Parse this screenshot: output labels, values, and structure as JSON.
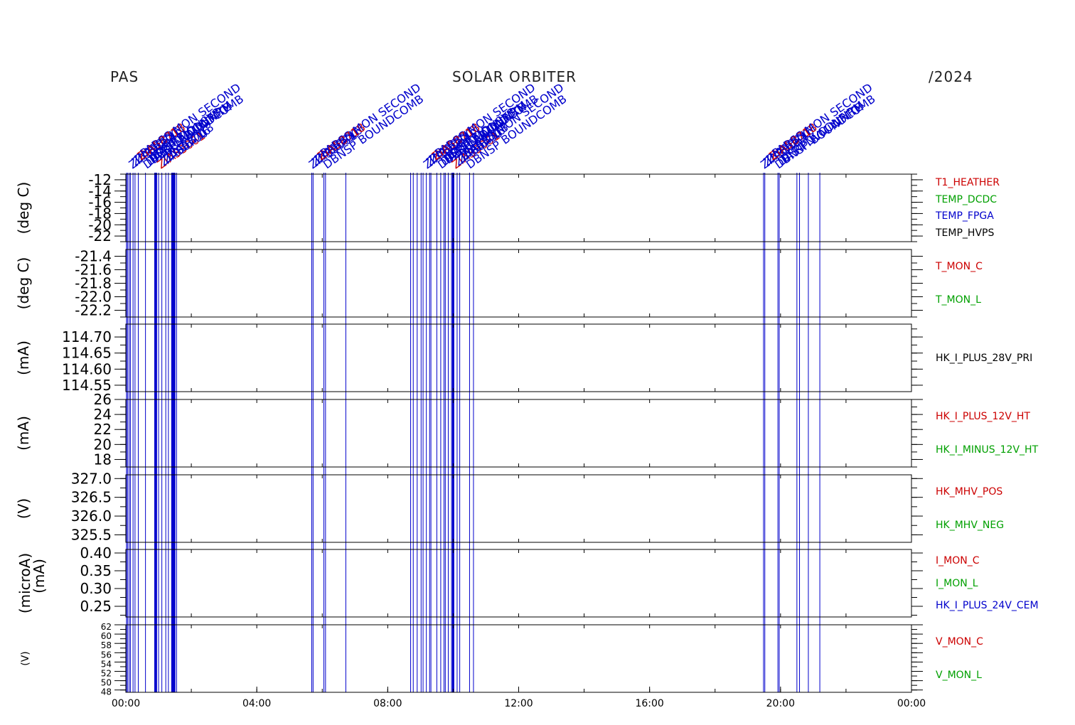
{
  "header": {
    "left": "PAS",
    "center": "SOLAR ORBITER",
    "right": "/2024"
  },
  "colors": {
    "axis": "#000000",
    "event_line": "#0000cc",
    "red": "#cc0000",
    "green": "#00a000",
    "blue": "#0000cc",
    "black": "#000000"
  },
  "chart_data": {
    "type": "line",
    "x_axis": {
      "range": [
        "00:00",
        "24:00"
      ],
      "tick_labels": [
        "00:00",
        "04:00",
        "08:00",
        "12:00",
        "16:00",
        "20:00",
        "00:00"
      ]
    },
    "events": {
      "description_values_hours": [
        0.02,
        0.05,
        0.1,
        0.14,
        0.22,
        0.28,
        0.38,
        0.6,
        0.88,
        0.92,
        1.0,
        1.1,
        1.22,
        1.3,
        1.42,
        1.48,
        1.55,
        5.68,
        5.72,
        6.05,
        6.1,
        6.72,
        8.7,
        8.78,
        8.9,
        9.02,
        9.08,
        9.18,
        9.28,
        9.32,
        9.5,
        9.62,
        9.72,
        9.76,
        9.85,
        9.95,
        10.0,
        10.12,
        10.2,
        10.5,
        10.62,
        19.48,
        19.52,
        19.92,
        19.96,
        20.5,
        20.58,
        20.85,
        21.2
      ],
      "bold_hours": [
        0.92,
        1.42,
        1.48,
        5.7,
        6.08,
        8.92,
        9.3,
        9.75,
        10.0,
        19.5,
        19.94
      ],
      "labels": [
        "ZIA53061",
        "ZIA58700",
        "ZIA58716",
        "ZIA58718",
        "PARSS MON SECOND",
        "DBNSP BOUNDCOMB",
        "DAST NVM WRITE",
        "DFRPLY CONFIRM",
        "EAST MONSYS",
        "DF/RSV"
      ]
    },
    "panels": [
      {
        "unit": "(deg C)",
        "ylim": [
          -23,
          -11
        ],
        "ticks": [
          "-12",
          "-14",
          "-16",
          "-18",
          "-20",
          "-22"
        ],
        "tick_values": [
          -12,
          -14,
          -16,
          -18,
          -20,
          -22
        ],
        "series": [
          {
            "name": "T1_HEATHER",
            "color": "#cc0000"
          },
          {
            "name": "TEMP_DCDC",
            "color": "#00a000"
          },
          {
            "name": "TEMP_FPGA",
            "color": "#0000cc"
          },
          {
            "name": "TEMP_HVPS",
            "color": "#000000"
          }
        ]
      },
      {
        "unit": "(deg C)",
        "ylim": [
          -22.3,
          -21.3
        ],
        "ticks": [
          "-21.4",
          "-21.6",
          "-21.8",
          "-22.0",
          "-22.2"
        ],
        "tick_values": [
          -21.4,
          -21.6,
          -21.8,
          -22.0,
          -22.2
        ],
        "series": [
          {
            "name": "T_MON_C",
            "color": "#cc0000"
          },
          {
            "name": "T_MON_L",
            "color": "#00a000"
          }
        ]
      },
      {
        "unit": "(mA)",
        "ylim": [
          114.53,
          114.74
        ],
        "ticks": [
          "114.70",
          "114.65",
          "114.60",
          "114.55"
        ],
        "tick_values": [
          114.7,
          114.65,
          114.6,
          114.55
        ],
        "series": [
          {
            "name": "HK_I_PLUS_28V_PRI",
            "color": "#000000"
          }
        ]
      },
      {
        "unit": "(mA)",
        "ylim": [
          17,
          26
        ],
        "ticks": [
          "26",
          "24",
          "22",
          "20",
          "18"
        ],
        "tick_values": [
          26,
          24,
          22,
          20,
          18
        ],
        "series": [
          {
            "name": "HK_I_PLUS_12V_HT",
            "color": "#cc0000"
          },
          {
            "name": "HK_I_MINUS_12V_HT",
            "color": "#00a000"
          }
        ]
      },
      {
        "unit": "(V)",
        "ylim": [
          325.3,
          327.1
        ],
        "ticks": [
          "327.0",
          "326.5",
          "326.0",
          "325.5"
        ],
        "tick_values": [
          327.0,
          326.5,
          326.0,
          325.5
        ],
        "series": [
          {
            "name": "HK_MHV_POS",
            "color": "#cc0000"
          },
          {
            "name": "HK_MHV_NEG",
            "color": "#00a000"
          }
        ]
      },
      {
        "unit": "(microA)",
        "unit2": "(mA)",
        "ylim": [
          0.22,
          0.41
        ],
        "ticks": [
          "0.40",
          "0.35",
          "0.30",
          "0.25"
        ],
        "tick_values": [
          0.4,
          0.35,
          0.3,
          0.25
        ],
        "series": [
          {
            "name": "I_MON_C",
            "color": "#cc0000"
          },
          {
            "name": "I_MON_L",
            "color": "#00a000"
          },
          {
            "name": "HK_I_PLUS_24V_CEM",
            "color": "#0000cc"
          }
        ]
      },
      {
        "unit": "(V)",
        "ylim": [
          47.5,
          62
        ],
        "ticks": [
          "62",
          "60",
          "58",
          "56",
          "54",
          "52",
          "50",
          "48"
        ],
        "tick_values": [
          62,
          60,
          58,
          56,
          54,
          52,
          50,
          48
        ],
        "series": [
          {
            "name": "V_MON_C",
            "color": "#cc0000"
          },
          {
            "name": "V_MON_L",
            "color": "#00a000"
          }
        ]
      }
    ]
  }
}
